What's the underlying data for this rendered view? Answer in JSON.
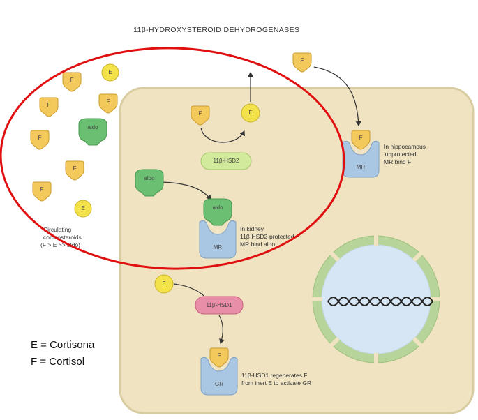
{
  "title": "11β-HYDROXYSTEROID DEHYDROGENASES",
  "molecules": {
    "F": "F",
    "E": "E",
    "aldo": "aldo",
    "MR": "MR",
    "GR": "GR"
  },
  "enzymes": {
    "hsd2": "11β-HSD2",
    "hsd1": "11β-HSD1"
  },
  "labels": {
    "circulating": [
      "Circulating",
      "corticosteroids",
      "(F > E >> aldo)"
    ],
    "hippocampus": [
      "In hippocampus",
      "'unprotected'",
      "MR bind F"
    ],
    "kidney": [
      "In kidney",
      "11β-HSD2-protected",
      "MR bind aldo"
    ],
    "regenerates": [
      "11β-HSD1 regenerates F",
      "from inert E to activate GR"
    ]
  },
  "legend": {
    "e_line": "E = Cortisona",
    "f_line": "F = Cortisol"
  },
  "colors": {
    "cell_fill": "#efe3c2",
    "cell_border": "#d8cca0",
    "f_fill": "#f3c95c",
    "e_fill": "#f4e24a",
    "aldo_fill": "#6bbf72",
    "receptor_fill": "#a9c6e2",
    "hsd2_fill": "#d2ea9c",
    "hsd1_fill": "#e88ea8",
    "nucleus_fill": "#d7e6f4",
    "nucleus_rim": "#b7d49a",
    "annotation_ellipse": "#e01010"
  }
}
